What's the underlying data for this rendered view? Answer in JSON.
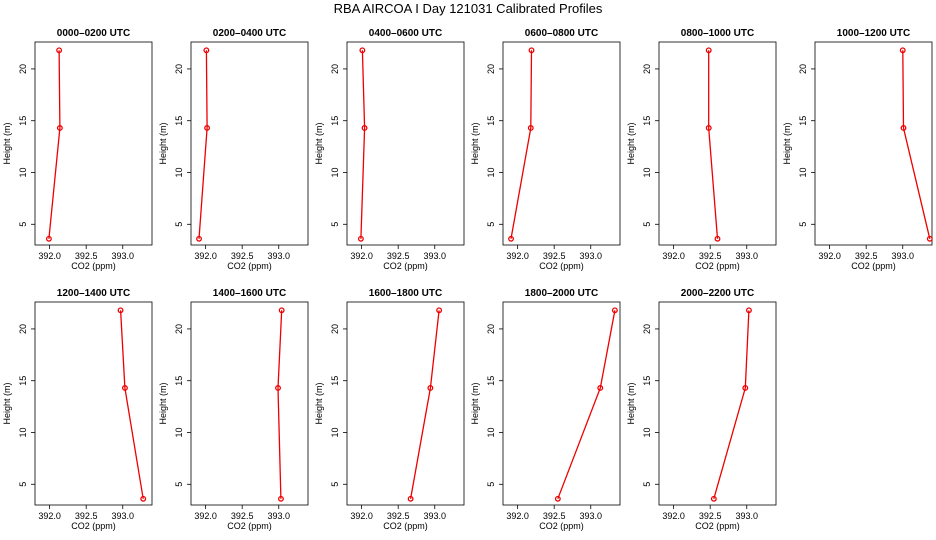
{
  "title": "RBA AIRCOA I  Day 121031  Calibrated Profiles",
  "colors": {
    "line": "#ee0000",
    "axis": "#000000"
  },
  "axes": {
    "xlabel": "CO2 (ppm)",
    "ylabel": "Height (m)",
    "xlim": [
      391.8,
      393.4
    ],
    "ylim": [
      3.0,
      22.6
    ],
    "xticks": [
      392.0,
      392.5,
      393.0
    ],
    "xtick_labels": [
      "392.0",
      "392.5",
      "393.0"
    ],
    "yticks": [
      5,
      10,
      15,
      20
    ],
    "ytick_labels": [
      "5",
      "10",
      "15",
      "20"
    ]
  },
  "chart_data": [
    {
      "type": "line",
      "title": "0000–0200 UTC",
      "x": [
        391.99,
        392.14,
        392.13
      ],
      "y": [
        3.6,
        14.3,
        21.8
      ]
    },
    {
      "type": "line",
      "title": "0200–0400 UTC",
      "x": [
        391.91,
        392.02,
        392.01
      ],
      "y": [
        3.6,
        14.3,
        21.8
      ]
    },
    {
      "type": "line",
      "title": "0400–0600 UTC",
      "x": [
        391.99,
        392.04,
        392.01
      ],
      "y": [
        3.6,
        14.3,
        21.8
      ]
    },
    {
      "type": "line",
      "title": "0600–0800 UTC",
      "x": [
        391.91,
        392.18,
        392.19
      ],
      "y": [
        3.6,
        14.3,
        21.8
      ]
    },
    {
      "type": "line",
      "title": "0800–1000 UTC",
      "x": [
        392.6,
        392.48,
        392.48
      ],
      "y": [
        3.6,
        14.3,
        21.8
      ]
    },
    {
      "type": "line",
      "title": "1000–1200 UTC",
      "x": [
        393.37,
        393.01,
        393.0
      ],
      "y": [
        3.6,
        14.3,
        21.8
      ]
    },
    {
      "type": "line",
      "title": "1200–1400 UTC",
      "x": [
        393.28,
        393.03,
        392.97
      ],
      "y": [
        3.6,
        14.3,
        21.8
      ]
    },
    {
      "type": "line",
      "title": "1400–1600 UTC",
      "x": [
        393.03,
        392.99,
        393.04
      ],
      "y": [
        3.6,
        14.3,
        21.8
      ]
    },
    {
      "type": "line",
      "title": "1600–1800 UTC",
      "x": [
        392.67,
        392.94,
        393.06
      ],
      "y": [
        3.6,
        14.3,
        21.8
      ]
    },
    {
      "type": "line",
      "title": "1800–2000 UTC",
      "x": [
        392.55,
        393.13,
        393.33
      ],
      "y": [
        3.6,
        14.3,
        21.8
      ]
    },
    {
      "type": "line",
      "title": "2000–2200 UTC",
      "x": [
        392.55,
        392.98,
        393.03
      ],
      "y": [
        3.6,
        14.3,
        21.8
      ]
    }
  ]
}
